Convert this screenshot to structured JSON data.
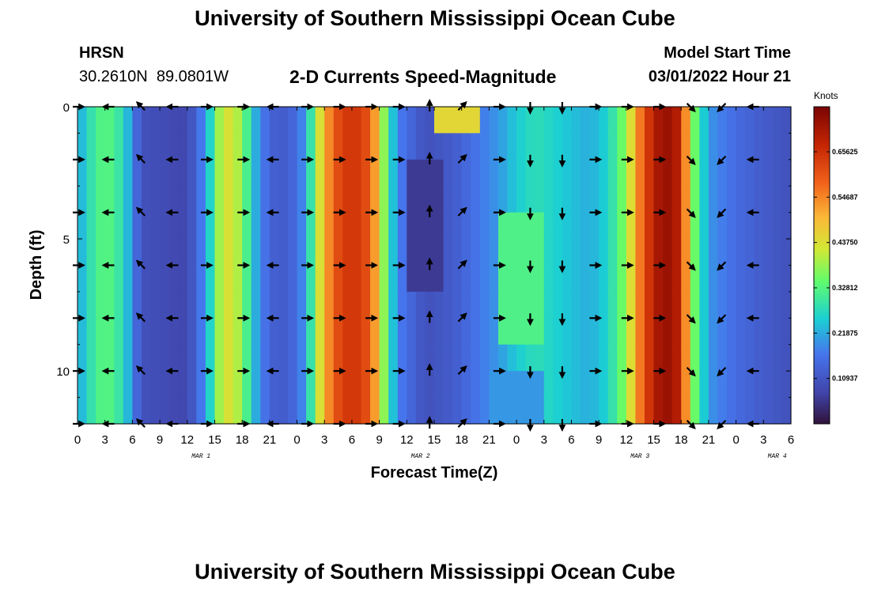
{
  "header": {
    "title": "University of Southern Mississippi Ocean Cube",
    "station": "HRSN",
    "coords": "30.2610N  89.0801W",
    "subtitle": "2-D Currents Speed-Magnitude",
    "model_start_label": "Model Start Time",
    "model_start_value": "03/01/2022 Hour 21"
  },
  "footer": {
    "title": "University of Southern Mississippi Ocean Cube"
  },
  "chart_data": {
    "type": "heatmap",
    "title": "2-D Currents Speed-Magnitude",
    "xlabel": "Forecast Time(Z)",
    "ylabel": "Depth (ft)",
    "x_ticks": [
      "0",
      "3",
      "6",
      "9",
      "12",
      "15",
      "18",
      "21",
      "0",
      "3",
      "6",
      "9",
      "12",
      "15",
      "18",
      "21",
      "0",
      "3",
      "6",
      "9",
      "12",
      "15",
      "18",
      "21",
      "0",
      "3",
      "6"
    ],
    "date_labels": [
      {
        "text": "MAR 1",
        "tick_index": 4.5
      },
      {
        "text": "MAR 2",
        "tick_index": 12.5
      },
      {
        "text": "MAR 3",
        "tick_index": 20.5
      },
      {
        "text": "MAR 4",
        "tick_index": 25.5
      }
    ],
    "x_range_hours": [
      0,
      78
    ],
    "y_ticks": [
      0,
      5,
      10
    ],
    "y_range_ft": [
      0,
      12
    ],
    "colorbar": {
      "label": "Knots",
      "ticks": [
        "0.10937",
        "0.21875",
        "0.32812",
        "0.43750",
        "0.54687",
        "0.65625"
      ],
      "range": [
        0,
        0.765
      ]
    },
    "profile": [
      {
        "h": 0,
        "s": 0.2
      },
      {
        "h": 1,
        "s": 0.27
      },
      {
        "h": 3,
        "s": 0.34
      },
      {
        "h": 5,
        "s": 0.28
      },
      {
        "h": 6,
        "s": 0.18
      },
      {
        "h": 7,
        "s": 0.1
      },
      {
        "h": 12,
        "s": 0.08
      },
      {
        "h": 14,
        "s": 0.2
      },
      {
        "h": 16,
        "s": 0.45
      },
      {
        "h": 18,
        "s": 0.38
      },
      {
        "h": 19,
        "s": 0.25
      },
      {
        "h": 21,
        "s": 0.13
      },
      {
        "h": 23,
        "s": 0.12
      },
      {
        "h": 25,
        "s": 0.2
      },
      {
        "h": 26,
        "s": 0.38
      },
      {
        "h": 28,
        "s": 0.6
      },
      {
        "h": 30,
        "s": 0.66
      },
      {
        "h": 32,
        "s": 0.6
      },
      {
        "h": 34,
        "s": 0.3
      },
      {
        "h": 35,
        "s": 0.18
      },
      {
        "h": 38,
        "s": 0.1
      },
      {
        "h": 41,
        "s": 0.12
      },
      {
        "h": 44,
        "s": 0.17
      },
      {
        "h": 46,
        "s": 0.2
      },
      {
        "h": 48,
        "s": 0.25
      },
      {
        "h": 50,
        "s": 0.28
      },
      {
        "h": 52,
        "s": 0.26
      },
      {
        "h": 54,
        "s": 0.24
      },
      {
        "h": 56,
        "s": 0.22
      },
      {
        "h": 58,
        "s": 0.26
      },
      {
        "h": 60,
        "s": 0.38
      },
      {
        "h": 62,
        "s": 0.62
      },
      {
        "h": 64,
        "s": 0.74
      },
      {
        "h": 66,
        "s": 0.68
      },
      {
        "h": 67,
        "s": 0.4
      },
      {
        "h": 69,
        "s": 0.2
      },
      {
        "h": 72,
        "s": 0.15
      },
      {
        "h": 75,
        "s": 0.12
      },
      {
        "h": 78,
        "s": 0.1
      }
    ],
    "patches": [
      {
        "h0": 36,
        "h1": 40,
        "d0": 2,
        "d1": 7,
        "value": 0.06
      },
      {
        "h0": 39,
        "h1": 44,
        "d0": 0,
        "d1": 1.5,
        "value": 0.45
      },
      {
        "h0": 46,
        "h1": 51,
        "d0": 4,
        "d1": 9,
        "value": 0.32
      },
      {
        "h0": 45,
        "h1": 51,
        "d0": 10,
        "d1": 12,
        "value": 0.2
      }
    ],
    "arrow_rows_ft": [
      0,
      2,
      4,
      6,
      8,
      10,
      12
    ],
    "arrows": [
      {
        "h": 0,
        "dir": "E"
      },
      {
        "h": 3.5,
        "dir": "W"
      },
      {
        "h": 7,
        "dir": "NW"
      },
      {
        "h": 10.5,
        "dir": "W"
      },
      {
        "h": 14,
        "dir": "E"
      },
      {
        "h": 18,
        "dir": "E"
      },
      {
        "h": 21.5,
        "dir": "W"
      },
      {
        "h": 25,
        "dir": "E"
      },
      {
        "h": 28.5,
        "dir": "E"
      },
      {
        "h": 32,
        "dir": "E"
      },
      {
        "h": 35,
        "dir": "E"
      },
      {
        "h": 38.5,
        "dir": "N"
      },
      {
        "h": 42,
        "dir": "NE"
      },
      {
        "h": 46,
        "dir": "E"
      },
      {
        "h": 49.5,
        "dir": "S"
      },
      {
        "h": 53,
        "dir": "S"
      },
      {
        "h": 56.5,
        "dir": "E"
      },
      {
        "h": 60,
        "dir": "E"
      },
      {
        "h": 63.5,
        "dir": "E"
      },
      {
        "h": 67,
        "dir": "SE"
      },
      {
        "h": 70.5,
        "dir": "SW"
      },
      {
        "h": 74,
        "dir": "W"
      }
    ]
  }
}
